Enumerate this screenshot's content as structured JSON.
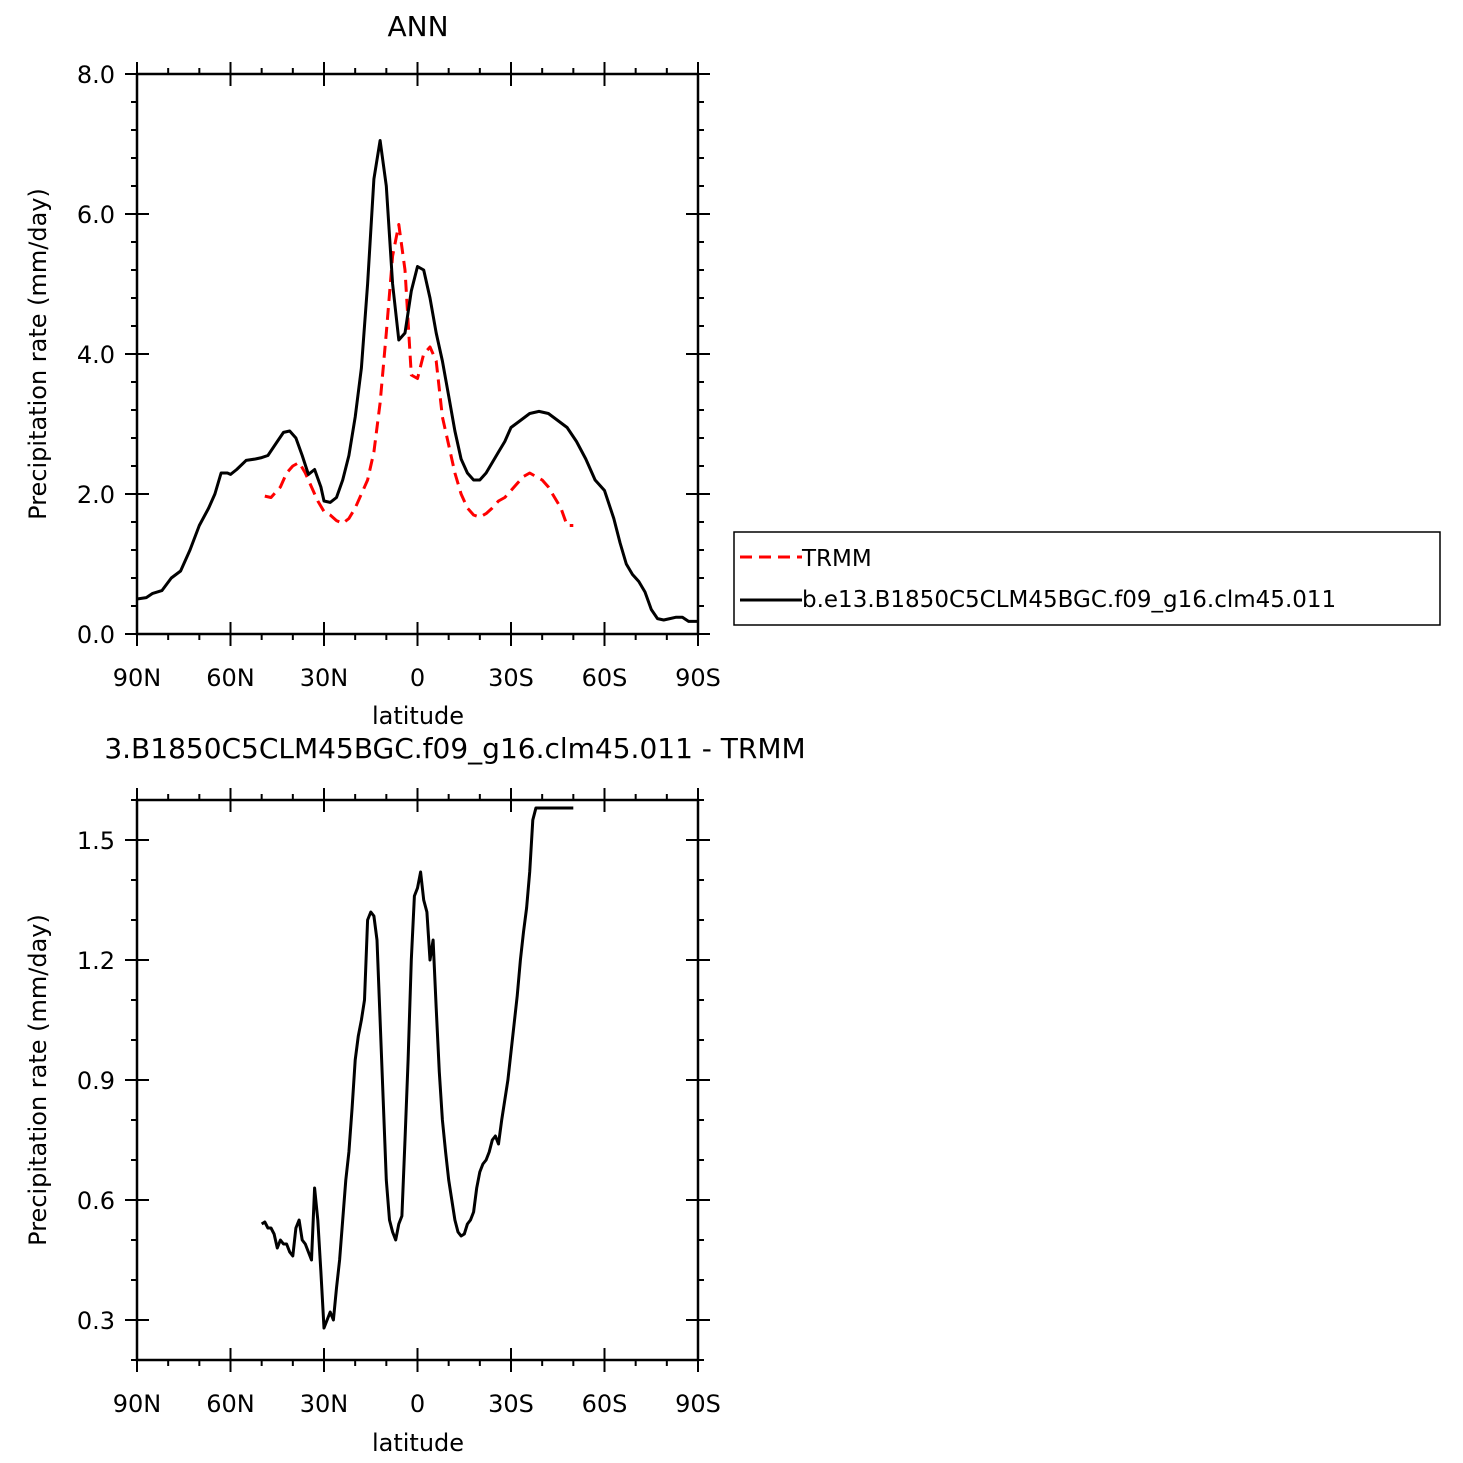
{
  "chart_data": [
    {
      "type": "line",
      "title": "ANN",
      "xlabel": "latitude",
      "ylabel": "Precipitation rate (mm/day)",
      "xlim": [
        90,
        -90
      ],
      "ylim": [
        0,
        8
      ],
      "yticks": [
        0,
        2,
        4,
        6,
        8
      ],
      "ytick_labels": [
        "0.0",
        "2.0",
        "4.0",
        "6.0",
        "8.0"
      ],
      "xticks": [
        90,
        60,
        30,
        0,
        -30,
        -60,
        -90
      ],
      "xtick_labels": [
        "90N",
        "60N",
        "30N",
        "0",
        "30S",
        "60S",
        "90S"
      ],
      "legend_position": "right",
      "series": [
        {
          "name": "TRMM",
          "color": "#ff0000",
          "dash": "dashed",
          "x": [
            49,
            47,
            44,
            42,
            40,
            38,
            36,
            34,
            32,
            30,
            28,
            26,
            24,
            22,
            20,
            18,
            16,
            14,
            12,
            10,
            8,
            6,
            4,
            2,
            0,
            -2,
            -4,
            -6,
            -8,
            -10,
            -12,
            -14,
            -16,
            -18,
            -20,
            -22,
            -24,
            -26,
            -28,
            -30,
            -32,
            -34,
            -36,
            -38,
            -40,
            -42,
            -44,
            -46,
            -48,
            -50
          ],
          "y": [
            1.97,
            1.95,
            2.1,
            2.3,
            2.4,
            2.45,
            2.3,
            2.1,
            1.9,
            1.75,
            1.7,
            1.62,
            1.58,
            1.65,
            1.8,
            2.0,
            2.2,
            2.6,
            3.3,
            4.3,
            5.4,
            5.85,
            5.2,
            3.7,
            3.65,
            4.0,
            4.1,
            3.9,
            3.1,
            2.7,
            2.3,
            2.0,
            1.8,
            1.7,
            1.67,
            1.72,
            1.8,
            1.9,
            1.95,
            2.05,
            2.15,
            2.25,
            2.3,
            2.25,
            2.2,
            2.1,
            1.95,
            1.8,
            1.55,
            1.55
          ]
        },
        {
          "name": "b.e13.B1850C5CLM45BGC.f09_g16.clm45.011",
          "color": "#000000",
          "dash": "solid",
          "x": [
            90,
            87,
            85,
            82,
            79,
            76,
            73,
            70,
            67,
            65,
            63,
            61,
            60,
            58,
            55,
            52,
            50,
            48,
            45,
            43,
            41,
            39,
            37,
            35,
            33,
            31,
            30,
            28,
            26,
            24,
            22,
            20,
            18,
            16,
            14,
            12,
            10,
            8,
            6,
            4,
            2,
            0,
            -2,
            -4,
            -6,
            -8,
            -10,
            -12,
            -14,
            -16,
            -18,
            -20,
            -22,
            -24,
            -26,
            -28,
            -30,
            -33,
            -36,
            -39,
            -42,
            -45,
            -48,
            -51,
            -54,
            -57,
            -60,
            -63,
            -65,
            -67,
            -69,
            -71,
            -73,
            -75,
            -77,
            -79,
            -81,
            -83,
            -85,
            -87,
            -89,
            -90
          ],
          "y": [
            0.5,
            0.52,
            0.58,
            0.62,
            0.8,
            0.9,
            1.2,
            1.55,
            1.8,
            2.0,
            2.3,
            2.3,
            2.28,
            2.35,
            2.48,
            2.5,
            2.52,
            2.55,
            2.75,
            2.88,
            2.9,
            2.8,
            2.55,
            2.28,
            2.35,
            2.1,
            1.9,
            1.88,
            1.95,
            2.2,
            2.55,
            3.1,
            3.8,
            5.0,
            6.5,
            7.05,
            6.4,
            5.0,
            4.2,
            4.3,
            4.9,
            5.25,
            5.2,
            4.8,
            4.3,
            3.9,
            3.4,
            2.9,
            2.5,
            2.3,
            2.2,
            2.2,
            2.3,
            2.45,
            2.6,
            2.75,
            2.95,
            3.05,
            3.15,
            3.18,
            3.15,
            3.05,
            2.95,
            2.75,
            2.5,
            2.2,
            2.05,
            1.65,
            1.3,
            1.0,
            0.85,
            0.75,
            0.6,
            0.35,
            0.22,
            0.2,
            0.22,
            0.24,
            0.24,
            0.18,
            0.18,
            0.18
          ]
        }
      ]
    },
    {
      "type": "line",
      "title": "3.B1850C5CLM45BGC.f09_g16.clm45.011  -  TRMM",
      "xlabel": "latitude",
      "ylabel": "Precipitation rate (mm/day)",
      "xlim": [
        90,
        -90
      ],
      "ylim": [
        0.2,
        1.6
      ],
      "yticks": [
        0.3,
        0.6,
        0.9,
        1.2,
        1.5
      ],
      "ytick_labels": [
        "0.3",
        "0.6",
        "0.9",
        "1.2",
        "1.5"
      ],
      "xticks": [
        90,
        60,
        30,
        0,
        -30,
        -60,
        -90
      ],
      "xtick_labels": [
        "90N",
        "60N",
        "30N",
        "0",
        "30S",
        "60S",
        "90S"
      ],
      "series": [
        {
          "name": "",
          "color": "#000000",
          "dash": "solid",
          "x": [
            50,
            49,
            48,
            47,
            46,
            45,
            44,
            43,
            42,
            41,
            40,
            39,
            38,
            37,
            36,
            35,
            34,
            33,
            32,
            31,
            30,
            29,
            28,
            27,
            26,
            25,
            24,
            23,
            22,
            21,
            20,
            19,
            18,
            17,
            16,
            15,
            14,
            13,
            12,
            11,
            10,
            9,
            8,
            7,
            6,
            5,
            4,
            3,
            2,
            1,
            0,
            -1,
            -2,
            -3,
            -4,
            -5,
            -6,
            -7,
            -8,
            -9,
            -10,
            -11,
            -12,
            -13,
            -14,
            -15,
            -16,
            -17,
            -18,
            -19,
            -20,
            -21,
            -22,
            -23,
            -24,
            -25,
            -26,
            -27,
            -28,
            -29,
            -30,
            -31,
            -32,
            -33,
            -34,
            -35,
            -36,
            -37,
            -38,
            -39,
            -40,
            -41,
            -42,
            -43,
            -44,
            -45,
            -46,
            -47,
            -48,
            -49,
            -50
          ],
          "y": [
            0.54,
            0.545,
            0.53,
            0.53,
            0.515,
            0.48,
            0.5,
            0.49,
            0.49,
            0.47,
            0.46,
            0.53,
            0.55,
            0.5,
            0.49,
            0.47,
            0.45,
            0.63,
            0.55,
            0.42,
            0.28,
            0.3,
            0.32,
            0.3,
            0.38,
            0.45,
            0.55,
            0.65,
            0.72,
            0.83,
            0.95,
            1.01,
            1.05,
            1.1,
            1.3,
            1.32,
            1.31,
            1.25,
            1.05,
            0.85,
            0.65,
            0.55,
            0.52,
            0.5,
            0.54,
            0.56,
            0.75,
            0.95,
            1.2,
            1.36,
            1.38,
            1.42,
            1.35,
            1.32,
            1.2,
            1.25,
            1.08,
            0.92,
            0.8,
            0.72,
            0.65,
            0.6,
            0.55,
            0.52,
            0.51,
            0.515,
            0.54,
            0.55,
            0.57,
            0.63,
            0.67,
            0.69,
            0.7,
            0.72,
            0.75,
            0.76,
            0.74,
            0.8,
            0.85,
            0.9,
            0.97,
            1.04,
            1.11,
            1.2,
            1.27,
            1.33,
            1.42,
            1.55,
            1.58,
            1.58,
            1.58,
            1.58,
            1.58,
            1.58,
            1.58,
            1.58,
            1.58,
            1.58,
            1.58,
            1.58,
            1.58
          ]
        }
      ]
    }
  ]
}
